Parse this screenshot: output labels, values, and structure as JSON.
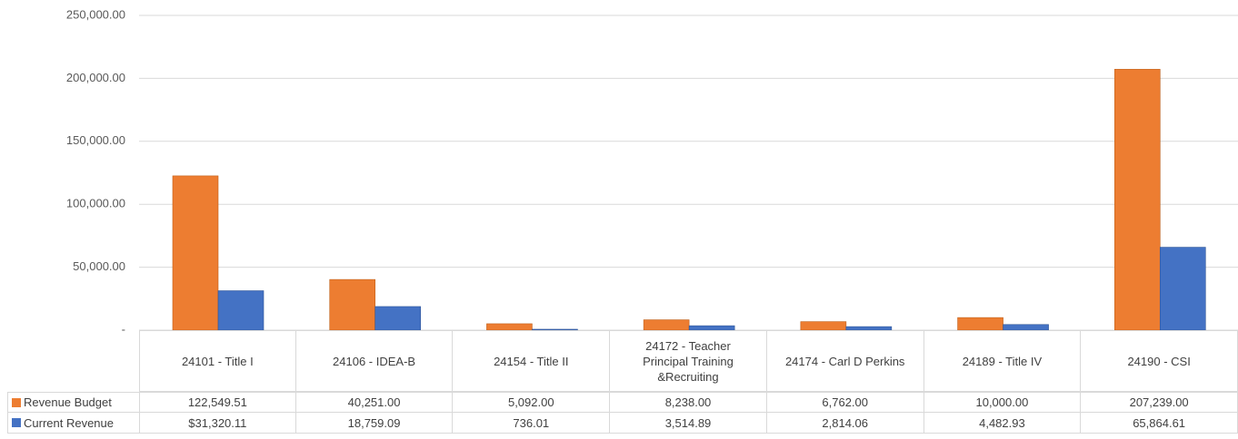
{
  "chart_data": {
    "type": "bar",
    "categories": [
      "24101 - Title I",
      "24106 - IDEA-B",
      "24154 - Title II",
      "24172 - Teacher Principal Training &Recruiting",
      "24174 - Carl D Perkins",
      "24189 - Title IV",
      "24190 - CSI"
    ],
    "series": [
      {
        "name": "Revenue Budget",
        "color": "#ed7d31",
        "values": [
          122549.51,
          40251,
          5092,
          8238,
          6762,
          10000,
          207239
        ],
        "value_labels": [
          "122,549.51",
          "40,251.00",
          "5,092.00",
          "8,238.00",
          "6,762.00",
          "10,000.00",
          "207,239.00"
        ]
      },
      {
        "name": "Current Revenue",
        "color": "#4472c4",
        "values": [
          31320.11,
          18759.09,
          736.01,
          3514.89,
          2814.06,
          4482.93,
          65864.61
        ],
        "value_labels": [
          "$31,320.11",
          "18,759.09",
          "736.01",
          "3,514.89",
          "2,814.06",
          "4,482.93",
          "65,864.61"
        ]
      }
    ],
    "ylim": [
      0,
      250000
    ],
    "yticks": [
      {
        "value": 0,
        "label": "-"
      },
      {
        "value": 50000,
        "label": "50,000.00"
      },
      {
        "value": 100000,
        "label": "100,000.00"
      },
      {
        "value": 150000,
        "label": "150,000.00"
      },
      {
        "value": 200000,
        "label": "200,000.00"
      },
      {
        "value": 250000,
        "label": "250,000.00"
      }
    ],
    "grid": true
  }
}
